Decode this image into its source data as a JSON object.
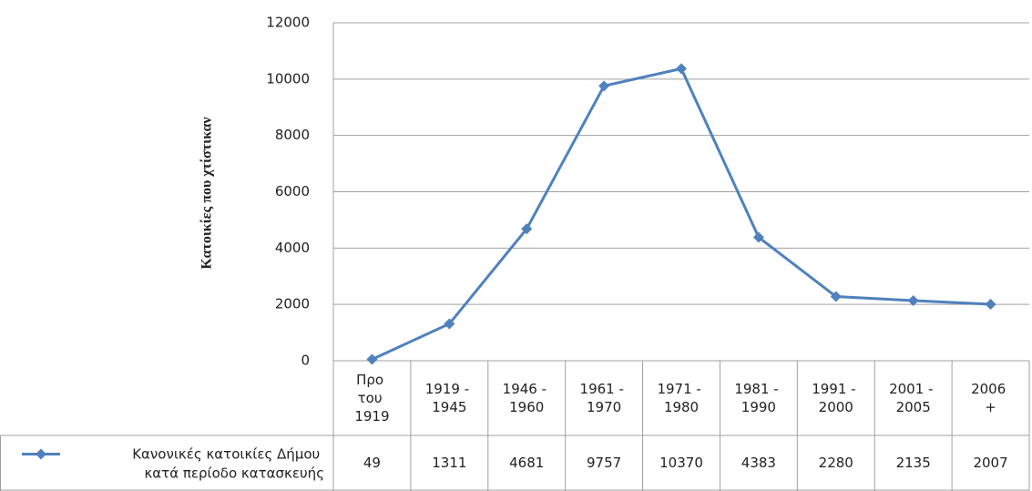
{
  "chart_data": {
    "type": "line",
    "y_label": "Κατοικίες που χτίστικαν",
    "categories": [
      "Προ του 1919",
      "1919 - 1945",
      "1946 - 1960",
      "1961 - 1970",
      "1971 - 1980",
      "1981 - 1990",
      "1991 - 2000",
      "2001 - 2005",
      "2006 +"
    ],
    "series": [
      {
        "name": "Κανονικές κατοικίες Δήμου κατά περίοδο κατασκευής",
        "color": "#4f81bd",
        "values": [
          49,
          1311,
          4681,
          9757,
          10370,
          4383,
          2280,
          2135,
          2007
        ]
      }
    ],
    "ylim": [
      0,
      12000
    ],
    "yticks": [
      0,
      2000,
      4000,
      6000,
      8000,
      10000,
      12000
    ],
    "grid": true,
    "data_table": true
  }
}
